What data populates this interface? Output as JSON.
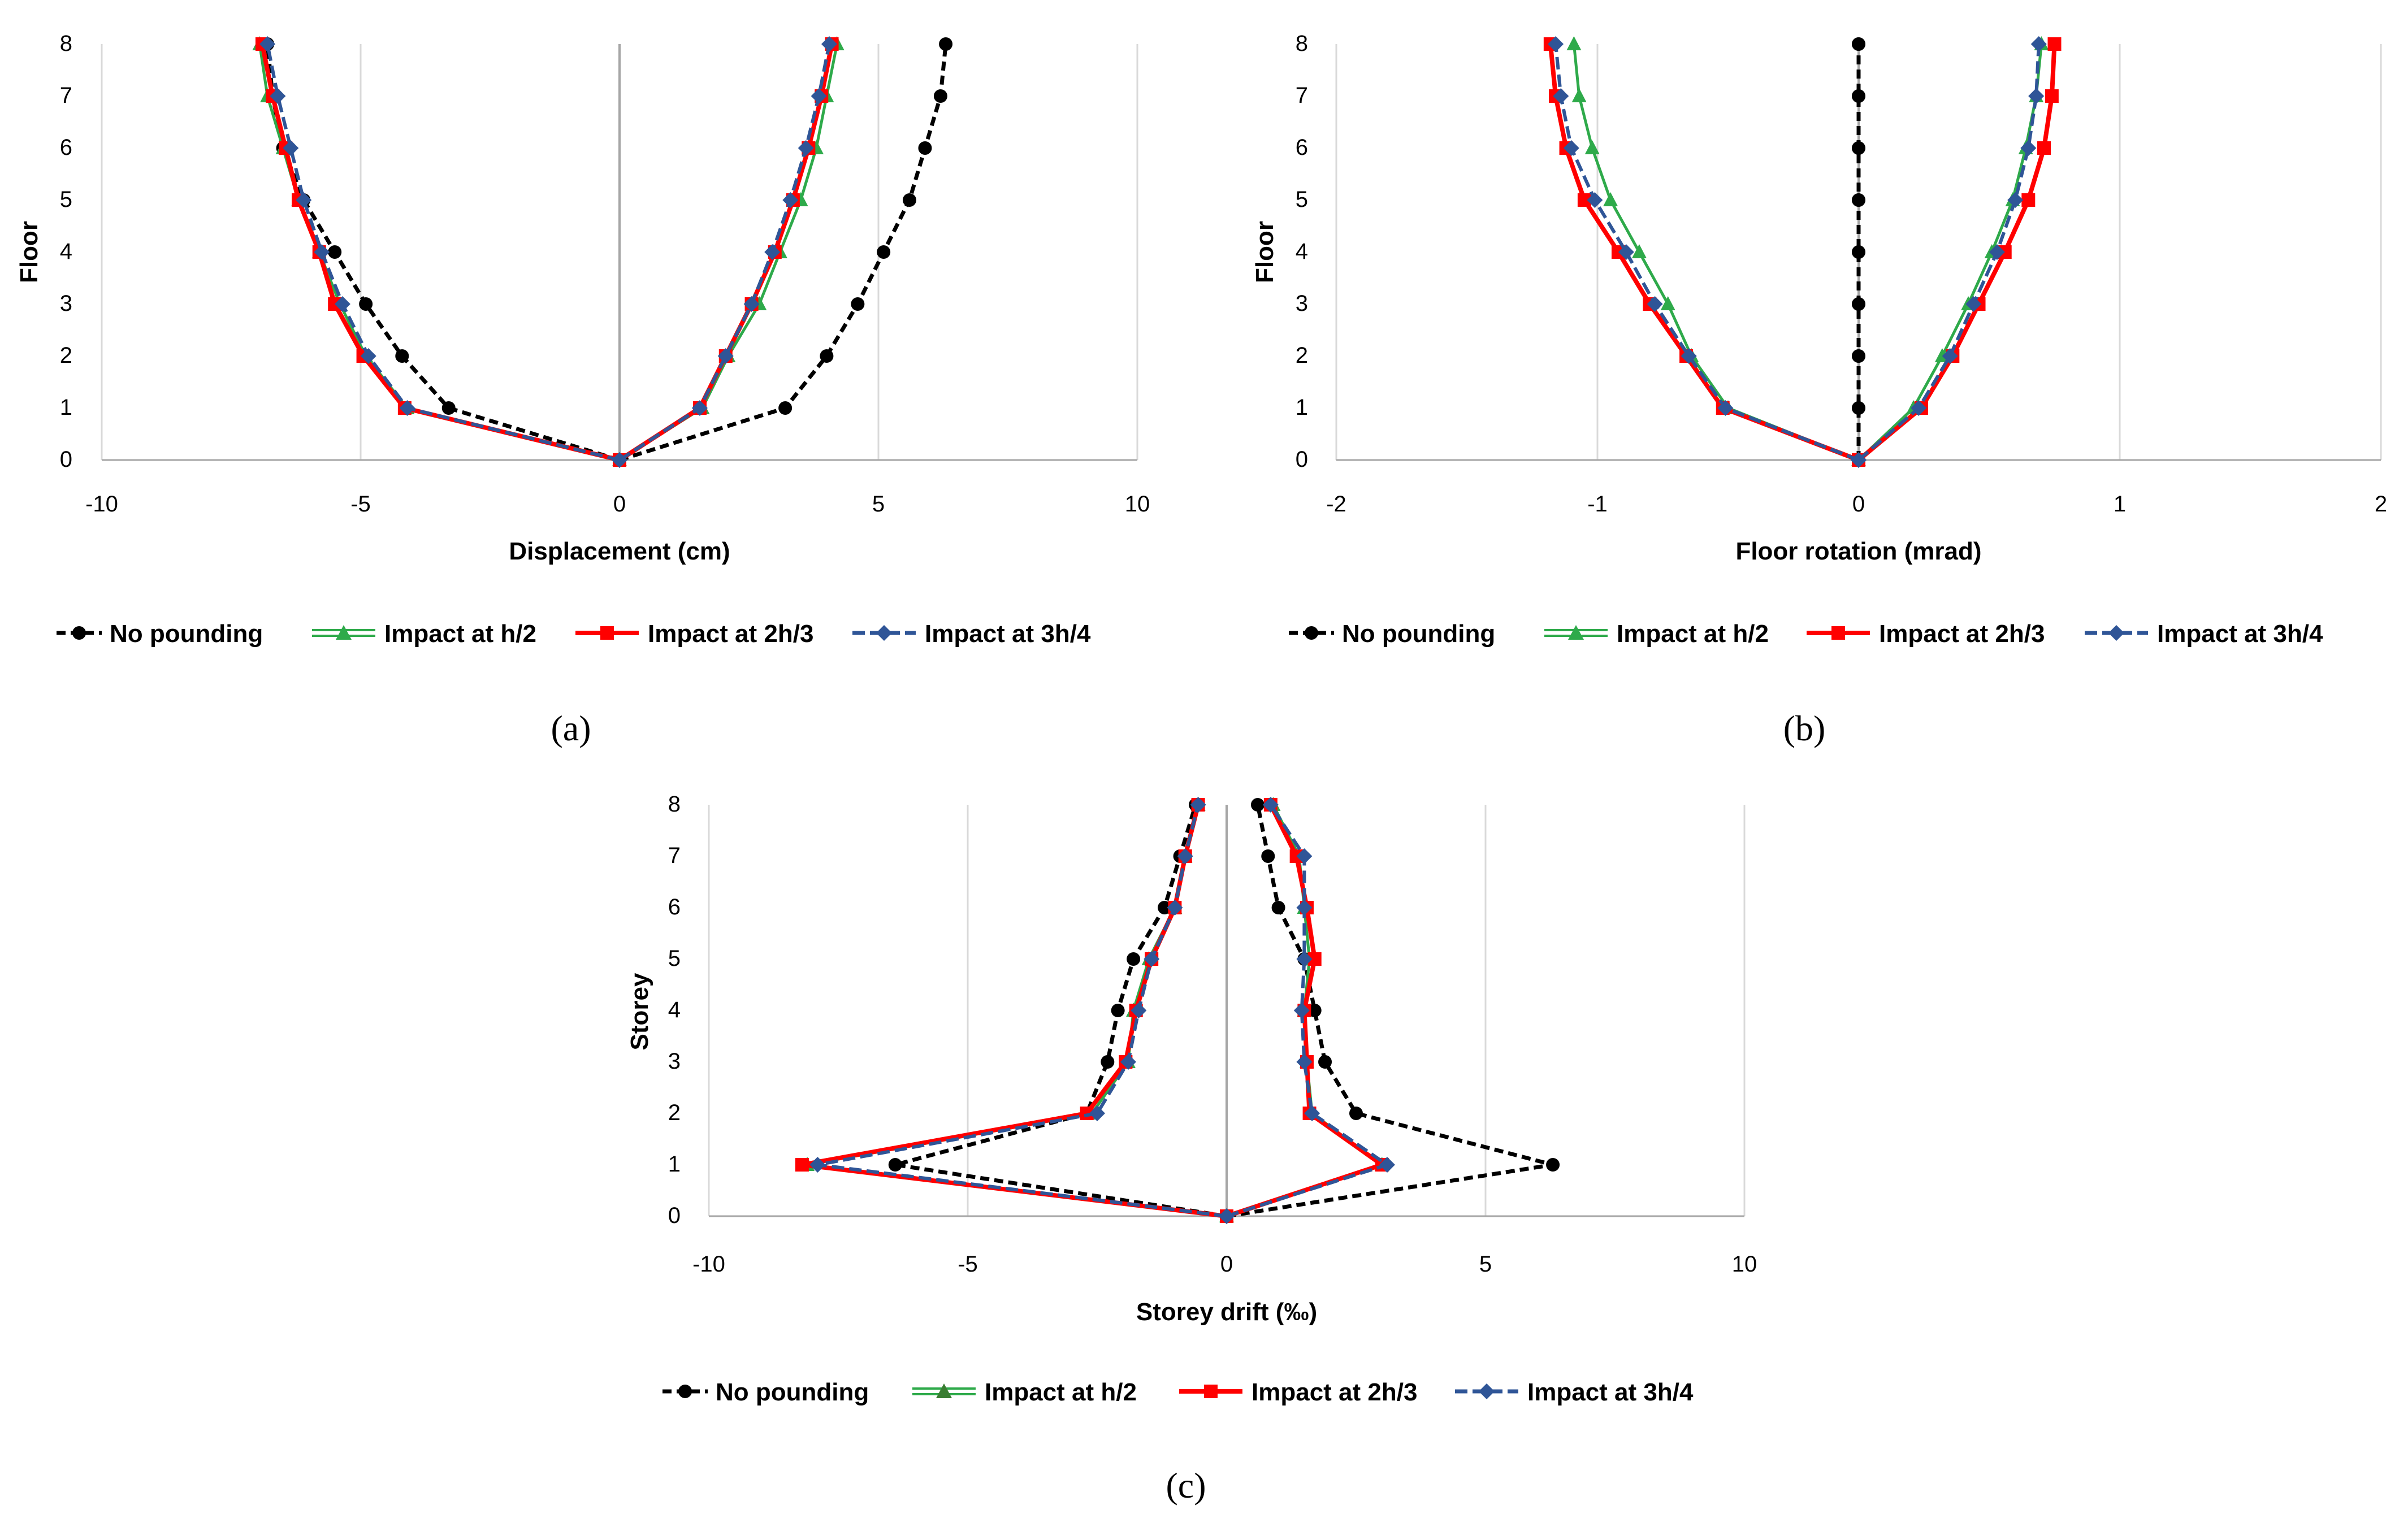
{
  "legend": {
    "series_names": [
      "No pounding",
      "Impact at h/2",
      "Impact at 2h/3",
      "Impact at 3h/4"
    ]
  },
  "colors": {
    "no_pounding": "#000000",
    "impact_h2": "#2EAA4A",
    "impact_2h3": "#FF0000",
    "impact_3h4": "#2F5597",
    "gridline": "#D9D9D9",
    "zeroline": "#A6A6A6"
  },
  "chart_data": [
    {
      "panel": "a",
      "caption": "(a)",
      "type": "line",
      "xlabel": "Displacement (cm)",
      "ylabel": "Floor",
      "xlim": [
        -10,
        10
      ],
      "ylim": [
        0,
        8
      ],
      "xticks": [
        "-10",
        "-5",
        "0",
        "5",
        "10"
      ],
      "yticks": [
        "0",
        "1",
        "2",
        "3",
        "4",
        "5",
        "6",
        "7",
        "8"
      ],
      "grid": "vertical",
      "legend_position": "bottom",
      "y": [
        0,
        1,
        2,
        3,
        4,
        5,
        6,
        7,
        8
      ],
      "series": [
        {
          "name": "No pounding",
          "negative": [
            0,
            -3.3,
            -4.2,
            -4.9,
            -5.5,
            -6.1,
            -6.5,
            -6.7,
            -6.8
          ],
          "positive": [
            0,
            3.2,
            4.0,
            4.6,
            5.1,
            5.6,
            5.9,
            6.2,
            6.3
          ]
        },
        {
          "name": "Impact at h/2",
          "negative": [
            0,
            -4.1,
            -4.9,
            -5.4,
            -5.8,
            -6.2,
            -6.5,
            -6.8,
            -6.95
          ],
          "positive": [
            0,
            1.6,
            2.1,
            2.7,
            3.1,
            3.5,
            3.8,
            4.0,
            4.2
          ]
        },
        {
          "name": "Impact at 2h/3",
          "negative": [
            0,
            -4.15,
            -4.95,
            -5.5,
            -5.8,
            -6.2,
            -6.45,
            -6.7,
            -6.9
          ],
          "positive": [
            0,
            1.55,
            2.05,
            2.55,
            3.0,
            3.35,
            3.65,
            3.9,
            4.1
          ]
        },
        {
          "name": "Impact at 3h/4",
          "negative": [
            0,
            -4.1,
            -4.85,
            -5.35,
            -5.75,
            -6.1,
            -6.35,
            -6.6,
            -6.8
          ],
          "positive": [
            0,
            1.55,
            2.05,
            2.55,
            2.95,
            3.3,
            3.6,
            3.85,
            4.05
          ]
        }
      ]
    },
    {
      "panel": "b",
      "caption": "(b)",
      "type": "line",
      "xlabel": "Floor rotation (mrad)",
      "ylabel": "Floor",
      "xlim": [
        -2,
        2
      ],
      "ylim": [
        0,
        8
      ],
      "xticks": [
        "-2",
        "-1",
        "0",
        "1",
        "2"
      ],
      "yticks": [
        "0",
        "1",
        "2",
        "3",
        "4",
        "5",
        "6",
        "7",
        "8"
      ],
      "grid": "vertical",
      "legend_position": "bottom",
      "y": [
        0,
        1,
        2,
        3,
        4,
        5,
        6,
        7,
        8
      ],
      "series": [
        {
          "name": "No pounding",
          "negative": [
            0,
            0,
            0,
            0,
            0,
            0,
            0,
            0,
            0
          ],
          "positive": [
            0,
            0,
            0,
            0,
            0,
            0,
            0,
            0,
            0
          ]
        },
        {
          "name": "Impact at h/2",
          "negative": [
            0,
            -0.5,
            -0.64,
            -0.73,
            -0.84,
            -0.95,
            -1.02,
            -1.07,
            -1.09
          ],
          "positive": [
            0,
            0.21,
            0.32,
            0.42,
            0.51,
            0.59,
            0.64,
            0.68,
            0.7
          ]
        },
        {
          "name": "Impact at 2h/3",
          "negative": [
            0,
            -0.52,
            -0.66,
            -0.8,
            -0.92,
            -1.05,
            -1.12,
            -1.16,
            -1.18
          ],
          "positive": [
            0,
            0.24,
            0.36,
            0.46,
            0.56,
            0.65,
            0.71,
            0.74,
            0.75
          ]
        },
        {
          "name": "Impact at 3h/4",
          "negative": [
            0,
            -0.51,
            -0.65,
            -0.78,
            -0.89,
            -1.01,
            -1.1,
            -1.14,
            -1.16
          ],
          "positive": [
            0,
            0.23,
            0.35,
            0.44,
            0.53,
            0.6,
            0.65,
            0.68,
            0.69
          ]
        }
      ]
    },
    {
      "panel": "c",
      "caption": "(c)",
      "type": "line",
      "xlabel": "Storey drift (‰)",
      "ylabel": "Storey",
      "xlim": [
        -10,
        10
      ],
      "ylim": [
        0,
        8
      ],
      "xticks": [
        "-10",
        "-5",
        "0",
        "5",
        "10"
      ],
      "yticks": [
        "0",
        "1",
        "2",
        "3",
        "4",
        "5",
        "6",
        "7",
        "8"
      ],
      "grid": "vertical",
      "legend_position": "bottom",
      "y": [
        0,
        1,
        2,
        3,
        4,
        5,
        6,
        7,
        8
      ],
      "series": [
        {
          "name": "No pounding",
          "negative": [
            0,
            -6.4,
            -2.7,
            -2.3,
            -2.1,
            -1.8,
            -1.2,
            -0.9,
            -0.6
          ],
          "positive": [
            0,
            6.3,
            2.5,
            1.9,
            1.7,
            1.5,
            1.0,
            0.8,
            0.6
          ]
        },
        {
          "name": "Impact at h/2",
          "negative": [
            0,
            -8.1,
            -2.6,
            -1.9,
            -1.8,
            -1.5,
            -1.0,
            -0.8,
            -0.55
          ],
          "positive": [
            0,
            3.0,
            1.65,
            1.55,
            1.5,
            1.6,
            1.5,
            1.4,
            0.9
          ]
        },
        {
          "name": "Impact at 2h/3",
          "negative": [
            0,
            -8.2,
            -2.7,
            -1.95,
            -1.75,
            -1.45,
            -1.0,
            -0.8,
            -0.55
          ],
          "positive": [
            0,
            3.0,
            1.6,
            1.55,
            1.5,
            1.7,
            1.55,
            1.35,
            0.85
          ]
        },
        {
          "name": "Impact at 3h/4",
          "negative": [
            0,
            -7.9,
            -2.5,
            -1.9,
            -1.7,
            -1.45,
            -1.0,
            -0.8,
            -0.55
          ],
          "positive": [
            0,
            3.1,
            1.65,
            1.5,
            1.45,
            1.5,
            1.5,
            1.5,
            0.85
          ]
        }
      ]
    }
  ]
}
